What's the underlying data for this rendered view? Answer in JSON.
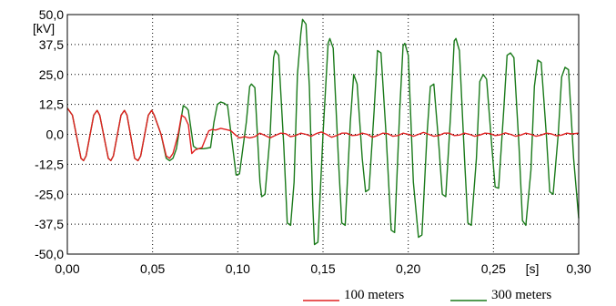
{
  "chart_data": {
    "type": "line",
    "title": "",
    "xlabel": "[s]",
    "ylabel": "[kV]",
    "xlim": [
      0.0,
      0.3
    ],
    "ylim": [
      -50.0,
      50.0
    ],
    "grid": true,
    "legend_position": "bottom-right",
    "x_ticks": [
      {
        "value": 0.0,
        "label": "0,00"
      },
      {
        "value": 0.05,
        "label": "0,05"
      },
      {
        "value": 0.1,
        "label": "0,10"
      },
      {
        "value": 0.15,
        "label": "0,15"
      },
      {
        "value": 0.2,
        "label": "0,20"
      },
      {
        "value": 0.25,
        "label": "0,25"
      },
      {
        "value": 0.3,
        "label": "0,30"
      }
    ],
    "y_ticks": [
      {
        "value": 50.0,
        "label": "50,0"
      },
      {
        "value": 37.5,
        "label": "37,5"
      },
      {
        "value": 25.0,
        "label": "25,0"
      },
      {
        "value": 12.5,
        "label": "12,5"
      },
      {
        "value": 0.0,
        "label": "0,0"
      },
      {
        "value": -12.5,
        "label": "-12,5"
      },
      {
        "value": -25.0,
        "label": "-25,0"
      },
      {
        "value": -37.5,
        "label": "-37,5"
      },
      {
        "value": -50.0,
        "label": "-50,0"
      }
    ],
    "series": [
      {
        "name": "300 meters",
        "color": "#1a7a1a",
        "points": [
          [
            0.0,
            11.0
          ],
          [
            0.003,
            8.0
          ],
          [
            0.008,
            -10.0
          ],
          [
            0.0095,
            -11.0
          ],
          [
            0.011,
            -9.0
          ],
          [
            0.0155,
            8.0
          ],
          [
            0.0175,
            10.0
          ],
          [
            0.019,
            8.0
          ],
          [
            0.024,
            -10.0
          ],
          [
            0.0255,
            -11.0
          ],
          [
            0.027,
            -9.0
          ],
          [
            0.0315,
            8.0
          ],
          [
            0.0335,
            10.0
          ],
          [
            0.035,
            8.0
          ],
          [
            0.0395,
            -10.0
          ],
          [
            0.0415,
            -11.0
          ],
          [
            0.043,
            -9.0
          ],
          [
            0.0475,
            8.0
          ],
          [
            0.0495,
            10.0
          ],
          [
            0.051,
            8.0
          ],
          [
            0.055,
            0.0
          ],
          [
            0.058,
            -10.0
          ],
          [
            0.06,
            -11.0
          ],
          [
            0.062,
            -10.0
          ],
          [
            0.064,
            -6.0
          ],
          [
            0.068,
            12.0
          ],
          [
            0.07,
            11.0
          ],
          [
            0.071,
            10.0
          ],
          [
            0.074,
            -5.0
          ],
          [
            0.076,
            -6.0
          ],
          [
            0.08,
            -6.0
          ],
          [
            0.084,
            -5.5
          ],
          [
            0.086,
            5.0
          ],
          [
            0.088,
            12.5
          ],
          [
            0.09,
            13.5
          ],
          [
            0.092,
            13.0
          ],
          [
            0.094,
            12.0
          ],
          [
            0.099,
            -17.0
          ],
          [
            0.101,
            -16.5
          ],
          [
            0.105,
            5.0
          ],
          [
            0.107,
            20.0
          ],
          [
            0.108,
            21.0
          ],
          [
            0.11,
            19.5
          ],
          [
            0.113,
            -20.0
          ],
          [
            0.114,
            -26.0
          ],
          [
            0.116,
            -25.0
          ],
          [
            0.119,
            0.0
          ],
          [
            0.121,
            32.0
          ],
          [
            0.122,
            35.0
          ],
          [
            0.124,
            33.0
          ],
          [
            0.127,
            -5.0
          ],
          [
            0.129,
            -37.0
          ],
          [
            0.131,
            -38.0
          ],
          [
            0.133,
            -20.0
          ],
          [
            0.135,
            25.0
          ],
          [
            0.137,
            42.0
          ],
          [
            0.138,
            48.0
          ],
          [
            0.14,
            46.0
          ],
          [
            0.142,
            20.0
          ],
          [
            0.144,
            -30.0
          ],
          [
            0.145,
            -46.0
          ],
          [
            0.147,
            -45.0
          ],
          [
            0.15,
            0.0
          ],
          [
            0.153,
            38.0
          ],
          [
            0.154,
            40.0
          ],
          [
            0.156,
            36.0
          ],
          [
            0.159,
            -10.0
          ],
          [
            0.161,
            -37.0
          ],
          [
            0.163,
            -38.0
          ],
          [
            0.166,
            5.0
          ],
          [
            0.168,
            25.0
          ],
          [
            0.17,
            21.0
          ],
          [
            0.173,
            -10.0
          ],
          [
            0.175,
            -24.0
          ],
          [
            0.177,
            -23.0
          ],
          [
            0.18,
            10.0
          ],
          [
            0.182,
            35.0
          ],
          [
            0.184,
            34.0
          ],
          [
            0.187,
            0.0
          ],
          [
            0.19,
            -40.0
          ],
          [
            0.192,
            -41.0
          ],
          [
            0.195,
            10.0
          ],
          [
            0.197,
            37.0
          ],
          [
            0.198,
            38.0
          ],
          [
            0.2,
            33.0
          ],
          [
            0.203,
            -20.0
          ],
          [
            0.206,
            -43.0
          ],
          [
            0.208,
            -42.0
          ],
          [
            0.211,
            0.0
          ],
          [
            0.213,
            20.0
          ],
          [
            0.215,
            21.0
          ],
          [
            0.218,
            -5.0
          ],
          [
            0.22,
            -25.0
          ],
          [
            0.222,
            -26.0
          ],
          [
            0.225,
            10.0
          ],
          [
            0.227,
            39.0
          ],
          [
            0.228,
            40.0
          ],
          [
            0.23,
            35.0
          ],
          [
            0.233,
            -10.0
          ],
          [
            0.235,
            -37.0
          ],
          [
            0.237,
            -38.0
          ],
          [
            0.24,
            -10.0
          ],
          [
            0.242,
            22.0
          ],
          [
            0.244,
            25.0
          ],
          [
            0.246,
            23.0
          ],
          [
            0.249,
            -5.0
          ],
          [
            0.251,
            -22.0
          ],
          [
            0.253,
            -22.5
          ],
          [
            0.256,
            10.0
          ],
          [
            0.258,
            33.0
          ],
          [
            0.26,
            34.0
          ],
          [
            0.262,
            32.0
          ],
          [
            0.265,
            -5.0
          ],
          [
            0.267,
            -36.0
          ],
          [
            0.269,
            -38.0
          ],
          [
            0.272,
            -15.0
          ],
          [
            0.274,
            20.0
          ],
          [
            0.276,
            31.0
          ],
          [
            0.278,
            30.0
          ],
          [
            0.281,
            0.0
          ],
          [
            0.283,
            -24.0
          ],
          [
            0.285,
            -25.0
          ],
          [
            0.288,
            0.0
          ],
          [
            0.29,
            24.0
          ],
          [
            0.292,
            28.0
          ],
          [
            0.294,
            27.0
          ],
          [
            0.297,
            -10.0
          ],
          [
            0.3,
            -35.0
          ]
        ]
      },
      {
        "name": "100 meters",
        "color": "#e02020",
        "points": [
          [
            0.0,
            11.0
          ],
          [
            0.003,
            8.0
          ],
          [
            0.008,
            -10.0
          ],
          [
            0.0095,
            -11.0
          ],
          [
            0.011,
            -9.0
          ],
          [
            0.0155,
            8.0
          ],
          [
            0.0175,
            10.0
          ],
          [
            0.019,
            8.0
          ],
          [
            0.024,
            -10.0
          ],
          [
            0.0255,
            -11.0
          ],
          [
            0.027,
            -9.0
          ],
          [
            0.0315,
            8.0
          ],
          [
            0.0335,
            10.0
          ],
          [
            0.035,
            8.0
          ],
          [
            0.0395,
            -10.0
          ],
          [
            0.0415,
            -11.0
          ],
          [
            0.043,
            -9.0
          ],
          [
            0.0475,
            8.0
          ],
          [
            0.0495,
            10.0
          ],
          [
            0.051,
            8.0
          ],
          [
            0.055,
            0.0
          ],
          [
            0.058,
            -9.0
          ],
          [
            0.06,
            -10.0
          ],
          [
            0.062,
            -8.0
          ],
          [
            0.065,
            0.0
          ],
          [
            0.067,
            8.0
          ],
          [
            0.069,
            7.0
          ],
          [
            0.071,
            4.0
          ],
          [
            0.073,
            -8.0
          ],
          [
            0.075,
            -6.5
          ],
          [
            0.079,
            -5.5
          ],
          [
            0.081,
            -2.0
          ],
          [
            0.083,
            1.5
          ],
          [
            0.085,
            2.0
          ],
          [
            0.087,
            1.8
          ],
          [
            0.09,
            2.5
          ],
          [
            0.093,
            2.0
          ],
          [
            0.096,
            1.5
          ],
          [
            0.099,
            -0.5
          ],
          [
            0.101,
            -1.5
          ],
          [
            0.104,
            -1.0
          ],
          [
            0.107,
            -1.5
          ],
          [
            0.11,
            -1.0
          ],
          [
            0.113,
            0.5
          ],
          [
            0.116,
            -0.5
          ],
          [
            0.119,
            -1.5
          ],
          [
            0.122,
            -0.5
          ],
          [
            0.125,
            0.5
          ],
          [
            0.128,
            0.3
          ],
          [
            0.131,
            -1.0
          ],
          [
            0.134,
            -0.5
          ],
          [
            0.137,
            0.5
          ],
          [
            0.14,
            0.0
          ],
          [
            0.143,
            -0.8
          ],
          [
            0.146,
            0.3
          ],
          [
            0.149,
            1.0
          ],
          [
            0.152,
            0.0
          ],
          [
            0.155,
            -1.2
          ],
          [
            0.158,
            -0.5
          ],
          [
            0.161,
            0.5
          ],
          [
            0.164,
            0.5
          ],
          [
            0.167,
            -0.5
          ],
          [
            0.17,
            -0.3
          ],
          [
            0.173,
            0.5
          ],
          [
            0.176,
            0.0
          ],
          [
            0.179,
            -1.2
          ],
          [
            0.182,
            -0.5
          ],
          [
            0.185,
            0.5
          ],
          [
            0.188,
            0.3
          ],
          [
            0.191,
            -0.8
          ],
          [
            0.194,
            -0.5
          ],
          [
            0.197,
            0.5
          ],
          [
            0.2,
            0.0
          ],
          [
            0.203,
            -0.8
          ],
          [
            0.206,
            0.0
          ],
          [
            0.209,
            0.8
          ],
          [
            0.212,
            0.0
          ],
          [
            0.215,
            -0.8
          ],
          [
            0.218,
            -0.5
          ],
          [
            0.221,
            0.5
          ],
          [
            0.224,
            0.5
          ],
          [
            0.227,
            -0.5
          ],
          [
            0.23,
            -0.3
          ],
          [
            0.233,
            0.5
          ],
          [
            0.236,
            0.0
          ],
          [
            0.239,
            -0.8
          ],
          [
            0.242,
            -0.3
          ],
          [
            0.245,
            0.5
          ],
          [
            0.248,
            0.3
          ],
          [
            0.251,
            -0.5
          ],
          [
            0.254,
            -0.2
          ],
          [
            0.257,
            0.6
          ],
          [
            0.26,
            0.0
          ],
          [
            0.263,
            -0.8
          ],
          [
            0.266,
            -0.3
          ],
          [
            0.269,
            0.5
          ],
          [
            0.272,
            0.0
          ],
          [
            0.275,
            -0.8
          ],
          [
            0.278,
            -0.3
          ],
          [
            0.281,
            0.5
          ],
          [
            0.284,
            0.2
          ],
          [
            0.287,
            -0.6
          ],
          [
            0.29,
            -0.3
          ],
          [
            0.293,
            0.5
          ],
          [
            0.296,
            0.2
          ],
          [
            0.3,
            0.5
          ]
        ]
      }
    ],
    "legend": [
      {
        "label": "100 meters",
        "color": "#e02020"
      },
      {
        "label": "300 meters",
        "color": "#1a7a1a"
      }
    ]
  }
}
